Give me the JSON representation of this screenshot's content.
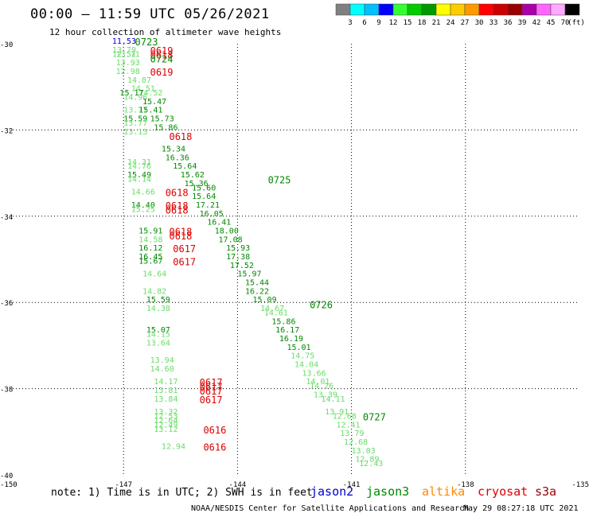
{
  "title": "00:00 – 11:59 UTC 05/26/2021",
  "subtitle": "12 hour collection of altimeter wave heights",
  "legend": {
    "unit": "(ft)",
    "colors": [
      "#808080",
      "#00ffff",
      "#00bfff",
      "#0000ff",
      "#33ff33",
      "#00cc00",
      "#009900",
      "#ffff00",
      "#ffcc00",
      "#ff9900",
      "#ff0000",
      "#cc0000",
      "#990000",
      "#aa00aa",
      "#ff66ff",
      "#ffaaff",
      "#000000"
    ],
    "labels": [
      "3",
      "6",
      "9",
      "12",
      "15",
      "18",
      "21",
      "24",
      "27",
      "30",
      "33",
      "36",
      "39",
      "42",
      "45",
      "70"
    ]
  },
  "axes": {
    "lon_ticks": [
      "-150",
      "-147",
      "-144",
      "-141",
      "-138",
      "-135"
    ],
    "lat_ticks": [
      "-30",
      "-32",
      "-34",
      "-36",
      "-38",
      "-40"
    ]
  },
  "footer": {
    "note": "note: 1) Time is in UTC; 2) SWH is in feet",
    "satellites": [
      {
        "name": "jason2",
        "color": "#0000cc"
      },
      {
        "name": "jason3",
        "color": "#008800"
      },
      {
        "name": "altika",
        "color": "#ff8800"
      },
      {
        "name": "cryosat",
        "color": "#dd0000"
      },
      {
        "name": "s3a",
        "color": "#990000"
      }
    ],
    "credit": "NOAA/NESDIS Center for Satellite Applications and Research",
    "timestamp": "May 29 08:27:18 UTC 2021"
  },
  "chart_data": {
    "type": "scatter",
    "xlim": [
      -150,
      -135
    ],
    "ylim": [
      -40,
      -30
    ],
    "grid": true,
    "times": [
      {
        "label": "0723",
        "lon": -146.7,
        "lat": -30.0,
        "color": "#008800"
      },
      {
        "label": "0619",
        "lon": -146.3,
        "lat": -30.2,
        "color": "#dd0000"
      },
      {
        "label": "0618",
        "lon": -146.3,
        "lat": -30.3,
        "color": "#dd0000"
      },
      {
        "label": "0724",
        "lon": -146.3,
        "lat": -30.4,
        "color": "#008800"
      },
      {
        "label": "0619",
        "lon": -146.3,
        "lat": -30.7,
        "color": "#dd0000"
      },
      {
        "label": "0618",
        "lon": -145.8,
        "lat": -32.2,
        "color": "#dd0000"
      },
      {
        "label": "0725",
        "lon": -143.2,
        "lat": -33.2,
        "color": "#008800"
      },
      {
        "label": "0618",
        "lon": -145.9,
        "lat": -33.5,
        "color": "#dd0000"
      },
      {
        "label": "0618",
        "lon": -145.9,
        "lat": -33.8,
        "color": "#dd0000"
      },
      {
        "label": "0618",
        "lon": -145.9,
        "lat": -33.9,
        "color": "#dd0000"
      },
      {
        "label": "0618",
        "lon": -145.8,
        "lat": -34.4,
        "color": "#dd0000"
      },
      {
        "label": "0618",
        "lon": -145.8,
        "lat": -34.5,
        "color": "#dd0000"
      },
      {
        "label": "0617",
        "lon": -145.7,
        "lat": -34.8,
        "color": "#dd0000"
      },
      {
        "label": "0617",
        "lon": -145.7,
        "lat": -35.1,
        "color": "#dd0000"
      },
      {
        "label": "0726",
        "lon": -142.1,
        "lat": -36.1,
        "color": "#008800"
      },
      {
        "label": "0617",
        "lon": -145.0,
        "lat": -37.9,
        "color": "#dd0000"
      },
      {
        "label": "0617",
        "lon": -145.0,
        "lat": -38.0,
        "color": "#dd0000"
      },
      {
        "label": "0617",
        "lon": -145.0,
        "lat": -38.1,
        "color": "#dd0000"
      },
      {
        "label": "0617",
        "lon": -145.0,
        "lat": -38.3,
        "color": "#dd0000"
      },
      {
        "label": "0727",
        "lon": -140.7,
        "lat": -38.7,
        "color": "#008800"
      },
      {
        "label": "0616",
        "lon": -144.9,
        "lat": -39.0,
        "color": "#dd0000"
      },
      {
        "label": "0616",
        "lon": -144.9,
        "lat": -39.4,
        "color": "#dd0000"
      }
    ],
    "points": [
      {
        "v": "11.53",
        "lon": -147.3,
        "lat": -30.0,
        "c": "#0000cc"
      },
      {
        "v": "13.79",
        "lon": -147.3,
        "lat": -30.2,
        "c": "#66dd66"
      },
      {
        "v": "12.51",
        "lon": -147.3,
        "lat": -30.3,
        "c": "#66dd66"
      },
      {
        "v": "13.71",
        "lon": -147.2,
        "lat": -30.3,
        "c": "#66dd66"
      },
      {
        "v": "13.93",
        "lon": -147.2,
        "lat": -30.5,
        "c": "#66dd66"
      },
      {
        "v": "12.98",
        "lon": -147.2,
        "lat": -30.7,
        "c": "#66dd66"
      },
      {
        "v": "14.87",
        "lon": -146.9,
        "lat": -30.9,
        "c": "#66dd66"
      },
      {
        "v": "14.51",
        "lon": -146.8,
        "lat": -31.1,
        "c": "#66dd66"
      },
      {
        "v": "14.52",
        "lon": -146.6,
        "lat": -31.2,
        "c": "#66dd66"
      },
      {
        "v": "15.17",
        "lon": -147.1,
        "lat": -31.2,
        "c": "#008800"
      },
      {
        "v": "14.96",
        "lon": -147.0,
        "lat": -31.3,
        "c": "#66dd66"
      },
      {
        "v": "15.47",
        "lon": -146.5,
        "lat": -31.4,
        "c": "#008800"
      },
      {
        "v": "13.77",
        "lon": -147.0,
        "lat": -31.6,
        "c": "#66dd66"
      },
      {
        "v": "15.41",
        "lon": -146.6,
        "lat": -31.6,
        "c": "#008800"
      },
      {
        "v": "15.59",
        "lon": -147.0,
        "lat": -31.8,
        "c": "#008800"
      },
      {
        "v": "15.73",
        "lon": -146.3,
        "lat": -31.8,
        "c": "#008800"
      },
      {
        "v": "13.77",
        "lon": -147.0,
        "lat": -31.9,
        "c": "#66dd66"
      },
      {
        "v": "15.86",
        "lon": -146.2,
        "lat": -32.0,
        "c": "#008800"
      },
      {
        "v": "13.13",
        "lon": -147.0,
        "lat": -32.1,
        "c": "#66dd66"
      },
      {
        "v": "15.34",
        "lon": -146.0,
        "lat": -32.5,
        "c": "#008800"
      },
      {
        "v": "16.36",
        "lon": -145.9,
        "lat": -32.7,
        "c": "#008800"
      },
      {
        "v": "14.31",
        "lon": -146.9,
        "lat": -32.8,
        "c": "#66dd66"
      },
      {
        "v": "14.76",
        "lon": -146.9,
        "lat": -32.9,
        "c": "#66dd66"
      },
      {
        "v": "15.64",
        "lon": -145.7,
        "lat": -32.9,
        "c": "#008800"
      },
      {
        "v": "15.49",
        "lon": -146.9,
        "lat": -33.1,
        "c": "#008800"
      },
      {
        "v": "15.62",
        "lon": -145.5,
        "lat": -33.1,
        "c": "#008800"
      },
      {
        "v": "14.14",
        "lon": -146.9,
        "lat": -33.2,
        "c": "#66dd66"
      },
      {
        "v": "15.36",
        "lon": -145.4,
        "lat": -33.3,
        "c": "#008800"
      },
      {
        "v": "15.60",
        "lon": -145.2,
        "lat": -33.4,
        "c": "#008800"
      },
      {
        "v": "14.66",
        "lon": -146.8,
        "lat": -33.5,
        "c": "#66dd66"
      },
      {
        "v": "15.64",
        "lon": -145.2,
        "lat": -33.6,
        "c": "#008800"
      },
      {
        "v": "14.40",
        "lon": -146.8,
        "lat": -33.8,
        "c": "#008800"
      },
      {
        "v": "17.21",
        "lon": -145.1,
        "lat": -33.8,
        "c": "#008800"
      },
      {
        "v": "15.25",
        "lon": -146.8,
        "lat": -33.9,
        "c": "#66dd66"
      },
      {
        "v": "16.05",
        "lon": -145.0,
        "lat": -34.0,
        "c": "#008800"
      },
      {
        "v": "16.41",
        "lon": -144.8,
        "lat": -34.2,
        "c": "#008800"
      },
      {
        "v": "15.91",
        "lon": -146.6,
        "lat": -34.4,
        "c": "#008800"
      },
      {
        "v": "18.00",
        "lon": -144.6,
        "lat": -34.4,
        "c": "#008800"
      },
      {
        "v": "14.58",
        "lon": -146.6,
        "lat": -34.6,
        "c": "#66dd66"
      },
      {
        "v": "17.08",
        "lon": -144.5,
        "lat": -34.6,
        "c": "#008800"
      },
      {
        "v": "15.93",
        "lon": -144.3,
        "lat": -34.8,
        "c": "#008800"
      },
      {
        "v": "16.12",
        "lon": -146.6,
        "lat": -34.8,
        "c": "#008800"
      },
      {
        "v": "17.38",
        "lon": -144.3,
        "lat": -35.0,
        "c": "#008800"
      },
      {
        "v": "16.45",
        "lon": -146.6,
        "lat": -35.0,
        "c": "#008800"
      },
      {
        "v": "15.67",
        "lon": -146.6,
        "lat": -35.1,
        "c": "#008800"
      },
      {
        "v": "17.52",
        "lon": -144.2,
        "lat": -35.2,
        "c": "#008800"
      },
      {
        "v": "15.97",
        "lon": -144.0,
        "lat": -35.4,
        "c": "#008800"
      },
      {
        "v": "14.64",
        "lon": -146.5,
        "lat": -35.4,
        "c": "#66dd66"
      },
      {
        "v": "15.44",
        "lon": -143.8,
        "lat": -35.6,
        "c": "#008800"
      },
      {
        "v": "16.22",
        "lon": -143.8,
        "lat": -35.8,
        "c": "#008800"
      },
      {
        "v": "14.82",
        "lon": -146.5,
        "lat": -35.8,
        "c": "#66dd66"
      },
      {
        "v": "15.09",
        "lon": -143.6,
        "lat": -36.0,
        "c": "#008800"
      },
      {
        "v": "15.59",
        "lon": -146.4,
        "lat": -36.0,
        "c": "#008800"
      },
      {
        "v": "14.67",
        "lon": -143.4,
        "lat": -36.2,
        "c": "#66dd66"
      },
      {
        "v": "14.38",
        "lon": -146.4,
        "lat": -36.2,
        "c": "#66dd66"
      },
      {
        "v": "14.61",
        "lon": -143.3,
        "lat": -36.3,
        "c": "#66dd66"
      },
      {
        "v": "15.86",
        "lon": -143.1,
        "lat": -36.5,
        "c": "#008800"
      },
      {
        "v": "16.17",
        "lon": -143.0,
        "lat": -36.7,
        "c": "#008800"
      },
      {
        "v": "15.07",
        "lon": -146.4,
        "lat": -36.7,
        "c": "#008800"
      },
      {
        "v": "14.15",
        "lon": -146.4,
        "lat": -36.8,
        "c": "#66dd66"
      },
      {
        "v": "13.64",
        "lon": -146.4,
        "lat": -37.0,
        "c": "#66dd66"
      },
      {
        "v": "16.19",
        "lon": -142.9,
        "lat": -36.9,
        "c": "#008800"
      },
      {
        "v": "15.01",
        "lon": -142.7,
        "lat": -37.1,
        "c": "#008800"
      },
      {
        "v": "14.75",
        "lon": -142.6,
        "lat": -37.3,
        "c": "#66dd66"
      },
      {
        "v": "13.94",
        "lon": -146.3,
        "lat": -37.4,
        "c": "#66dd66"
      },
      {
        "v": "14.04",
        "lon": -142.5,
        "lat": -37.5,
        "c": "#66dd66"
      },
      {
        "v": "14.60",
        "lon": -146.3,
        "lat": -37.6,
        "c": "#66dd66"
      },
      {
        "v": "13.66",
        "lon": -142.3,
        "lat": -37.7,
        "c": "#66dd66"
      },
      {
        "v": "14.01",
        "lon": -142.2,
        "lat": -37.9,
        "c": "#66dd66"
      },
      {
        "v": "14.17",
        "lon": -146.2,
        "lat": -37.9,
        "c": "#66dd66"
      },
      {
        "v": "14.26",
        "lon": -142.1,
        "lat": -38.0,
        "c": "#66dd66"
      },
      {
        "v": "13.81",
        "lon": -146.2,
        "lat": -38.1,
        "c": "#66dd66"
      },
      {
        "v": "13.39",
        "lon": -142.0,
        "lat": -38.2,
        "c": "#66dd66"
      },
      {
        "v": "13.84",
        "lon": -146.2,
        "lat": -38.3,
        "c": "#66dd66"
      },
      {
        "v": "14.11",
        "lon": -141.8,
        "lat": -38.3,
        "c": "#66dd66"
      },
      {
        "v": "13.91",
        "lon": -141.7,
        "lat": -38.6,
        "c": "#66dd66"
      },
      {
        "v": "13.32",
        "lon": -146.2,
        "lat": -38.6,
        "c": "#66dd66"
      },
      {
        "v": "12.68",
        "lon": -141.5,
        "lat": -38.7,
        "c": "#66dd66"
      },
      {
        "v": "12.53",
        "lon": -146.2,
        "lat": -38.7,
        "c": "#66dd66"
      },
      {
        "v": "12.64",
        "lon": -146.2,
        "lat": -38.8,
        "c": "#66dd66"
      },
      {
        "v": "12.41",
        "lon": -141.4,
        "lat": -38.9,
        "c": "#66dd66"
      },
      {
        "v": "12.49",
        "lon": -146.2,
        "lat": -38.9,
        "c": "#66dd66"
      },
      {
        "v": "13.12",
        "lon": -146.2,
        "lat": -39.0,
        "c": "#66dd66"
      },
      {
        "v": "13.79",
        "lon": -141.3,
        "lat": -39.1,
        "c": "#66dd66"
      },
      {
        "v": "12.68",
        "lon": -141.2,
        "lat": -39.3,
        "c": "#66dd66"
      },
      {
        "v": "12.94",
        "lon": -146.0,
        "lat": -39.4,
        "c": "#66dd66"
      },
      {
        "v": "13.03",
        "lon": -141.0,
        "lat": -39.5,
        "c": "#66dd66"
      },
      {
        "v": "12.89",
        "lon": -140.9,
        "lat": -39.7,
        "c": "#66dd66"
      },
      {
        "v": "12.43",
        "lon": -140.8,
        "lat": -39.8,
        "c": "#66dd66"
      }
    ]
  }
}
